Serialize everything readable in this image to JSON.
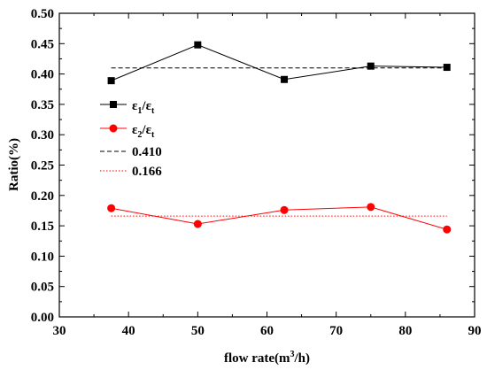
{
  "chart_data": {
    "type": "line",
    "title": "",
    "xlabel": "flow rate(m",
    "xlabel_sup": "3",
    "xlabel_tail": "/h)",
    "ylabel": "Ratio(%)",
    "xlim": [
      30,
      90
    ],
    "ylim": [
      0.0,
      0.5
    ],
    "xticks": [
      30,
      40,
      50,
      60,
      70,
      80,
      90
    ],
    "yticks": [
      0.0,
      0.05,
      0.1,
      0.15,
      0.2,
      0.25,
      0.3,
      0.35,
      0.4,
      0.45,
      0.5
    ],
    "xtick_labels": [
      "30",
      "40",
      "50",
      "60",
      "70",
      "80",
      "90"
    ],
    "ytick_labels": [
      "0.00",
      "0.05",
      "0.10",
      "0.15",
      "0.20",
      "0.25",
      "0.30",
      "0.35",
      "0.40",
      "0.45",
      "0.50"
    ],
    "grid": false,
    "legend_position": "left-middle",
    "x": [
      37.5,
      50,
      62.5,
      75,
      86
    ],
    "series": [
      {
        "id": "s1",
        "name_main": "ε",
        "name_sub1": "1",
        "name_mid": "/ε",
        "name_sub2": "t",
        "values": [
          0.389,
          0.448,
          0.391,
          0.413,
          0.411
        ],
        "color": "#000000",
        "marker": "square"
      },
      {
        "id": "s2",
        "name_main": "ε",
        "name_sub1": "2",
        "name_mid": "/ε",
        "name_sub2": "t",
        "values": [
          0.179,
          0.153,
          0.176,
          0.181,
          0.144
        ],
        "color": "#ff0000",
        "marker": "circle"
      }
    ],
    "reference_lines": [
      {
        "id": "r1",
        "name": "0.410",
        "value": 0.41,
        "x_range": [
          37.5,
          86
        ],
        "color": "#000000",
        "style": "dashed"
      },
      {
        "id": "r2",
        "name": "0.166",
        "value": 0.166,
        "x_range": [
          37.5,
          86
        ],
        "color": "#ff0000",
        "style": "dotted"
      }
    ]
  }
}
